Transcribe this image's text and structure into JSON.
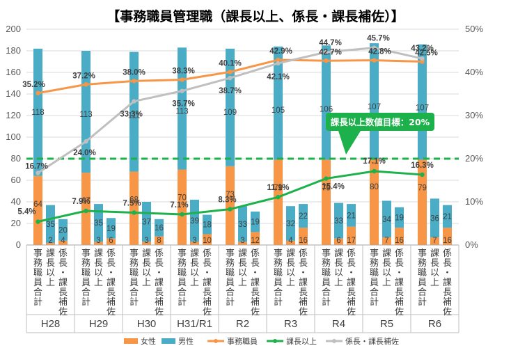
{
  "chart_data": {
    "type": "bar",
    "title": "【事務職員管理職（課長以上、係長・課長補佐）】",
    "years": [
      "H28",
      "H29",
      "H30",
      "H31/R1",
      "R2",
      "R3",
      "R4",
      "R5",
      "R6"
    ],
    "bar_categories": [
      "事務職員合計",
      "課長以上",
      "係長・課長補佐"
    ],
    "female": [
      [
        64,
        2,
        4
      ],
      [
        67,
        3,
        6
      ],
      [
        68,
        3,
        8
      ],
      [
        70,
        3,
        10
      ],
      [
        73,
        3,
        12
      ],
      [
        79,
        4,
        16
      ],
      [
        79,
        6,
        17
      ],
      [
        80,
        7,
        16
      ],
      [
        79,
        7,
        16
      ]
    ],
    "male": [
      [
        118,
        35,
        20
      ],
      [
        113,
        35,
        19
      ],
      [
        111,
        37,
        16
      ],
      [
        113,
        39,
        18
      ],
      [
        109,
        33,
        19
      ],
      [
        105,
        32,
        22
      ],
      [
        106,
        33,
        21
      ],
      [
        107,
        34,
        19
      ],
      [
        107,
        36,
        21
      ]
    ],
    "ratio_series": [
      {
        "name": "事務職員",
        "color": "#F79646",
        "values": [
          35.2,
          37.2,
          38.0,
          38.3,
          40.1,
          42.9,
          42.7,
          42.8,
          42.5
        ],
        "labels": [
          "35.2%",
          "37.2%",
          "38.0%",
          "38.3%",
          "40.1%",
          "42.9%",
          "42.7%",
          "42.8%",
          "42.5%"
        ]
      },
      {
        "name": "課長以上",
        "color": "#1DB14B",
        "values": [
          5.4,
          7.9,
          7.5,
          7.1,
          8.3,
          11.1,
          15.4,
          17.1,
          16.3
        ],
        "labels": [
          "5.4%",
          "7.9%",
          "7.5%",
          "7.1%",
          "8.3%",
          "11.1%",
          "15.4%",
          "17.1%",
          "16.3%"
        ]
      },
      {
        "name": "係長・課長補佐",
        "color": "#BFBFBF",
        "values": [
          16.7,
          24.0,
          33.3,
          35.7,
          38.7,
          42.1,
          44.7,
          45.7,
          43.2
        ],
        "labels": [
          "16.7%",
          "24.0%",
          "33.3%",
          "35.7%",
          "38.7%",
          "42.1%",
          "44.7%",
          "45.7%",
          "43.2%"
        ]
      }
    ],
    "left_axis": {
      "min": 0,
      "max": 200,
      "step": 20,
      "ticks": [
        "0",
        "20",
        "40",
        "60",
        "80",
        "100",
        "120",
        "140",
        "160",
        "180",
        "200"
      ]
    },
    "right_axis": {
      "min": 0,
      "max": 50,
      "step": 10,
      "ticks": [
        "0%",
        "10%",
        "20%",
        "30%",
        "40%",
        "50%"
      ]
    },
    "target": {
      "value": 20,
      "label": "課長以上数値目標：20%"
    },
    "legend": [
      "女性",
      "男性",
      "事務職員",
      "課長以上",
      "係長・課長補佐"
    ],
    "colors": {
      "female": "#F79646",
      "male": "#4BACC6",
      "target": "#1DB14B",
      "grid": "#D9D9D9"
    }
  }
}
